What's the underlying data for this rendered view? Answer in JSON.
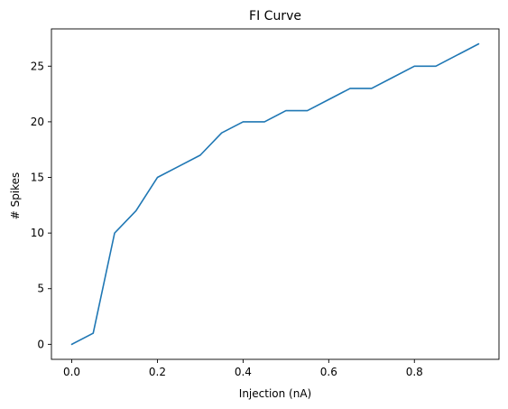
{
  "chart_data": {
    "type": "line",
    "title": "FI Curve",
    "xlabel": "Injection (nA)",
    "ylabel": "# Spikes",
    "xlim": [
      -0.0475,
      0.9975
    ],
    "ylim": [
      -1.35,
      28.35
    ],
    "xticks": [
      0.0,
      0.2,
      0.4,
      0.6,
      0.8
    ],
    "xtick_labels": [
      "0.0",
      "0.2",
      "0.4",
      "0.6",
      "0.8"
    ],
    "yticks": [
      0,
      5,
      10,
      15,
      20,
      25
    ],
    "ytick_labels": [
      "0",
      "5",
      "10",
      "15",
      "20",
      "25"
    ],
    "grid": false,
    "series": [
      {
        "color": "#1f77b4",
        "x": [
          0.0,
          0.05,
          0.1,
          0.15,
          0.2,
          0.25,
          0.3,
          0.35,
          0.4,
          0.45,
          0.5,
          0.55,
          0.6,
          0.65,
          0.7,
          0.75,
          0.8,
          0.85,
          0.9,
          0.95
        ],
        "y": [
          0,
          1,
          10,
          12,
          15,
          16,
          17,
          19,
          20,
          20,
          21,
          21,
          22,
          23,
          23,
          24,
          25,
          25,
          26,
          27
        ]
      }
    ]
  }
}
